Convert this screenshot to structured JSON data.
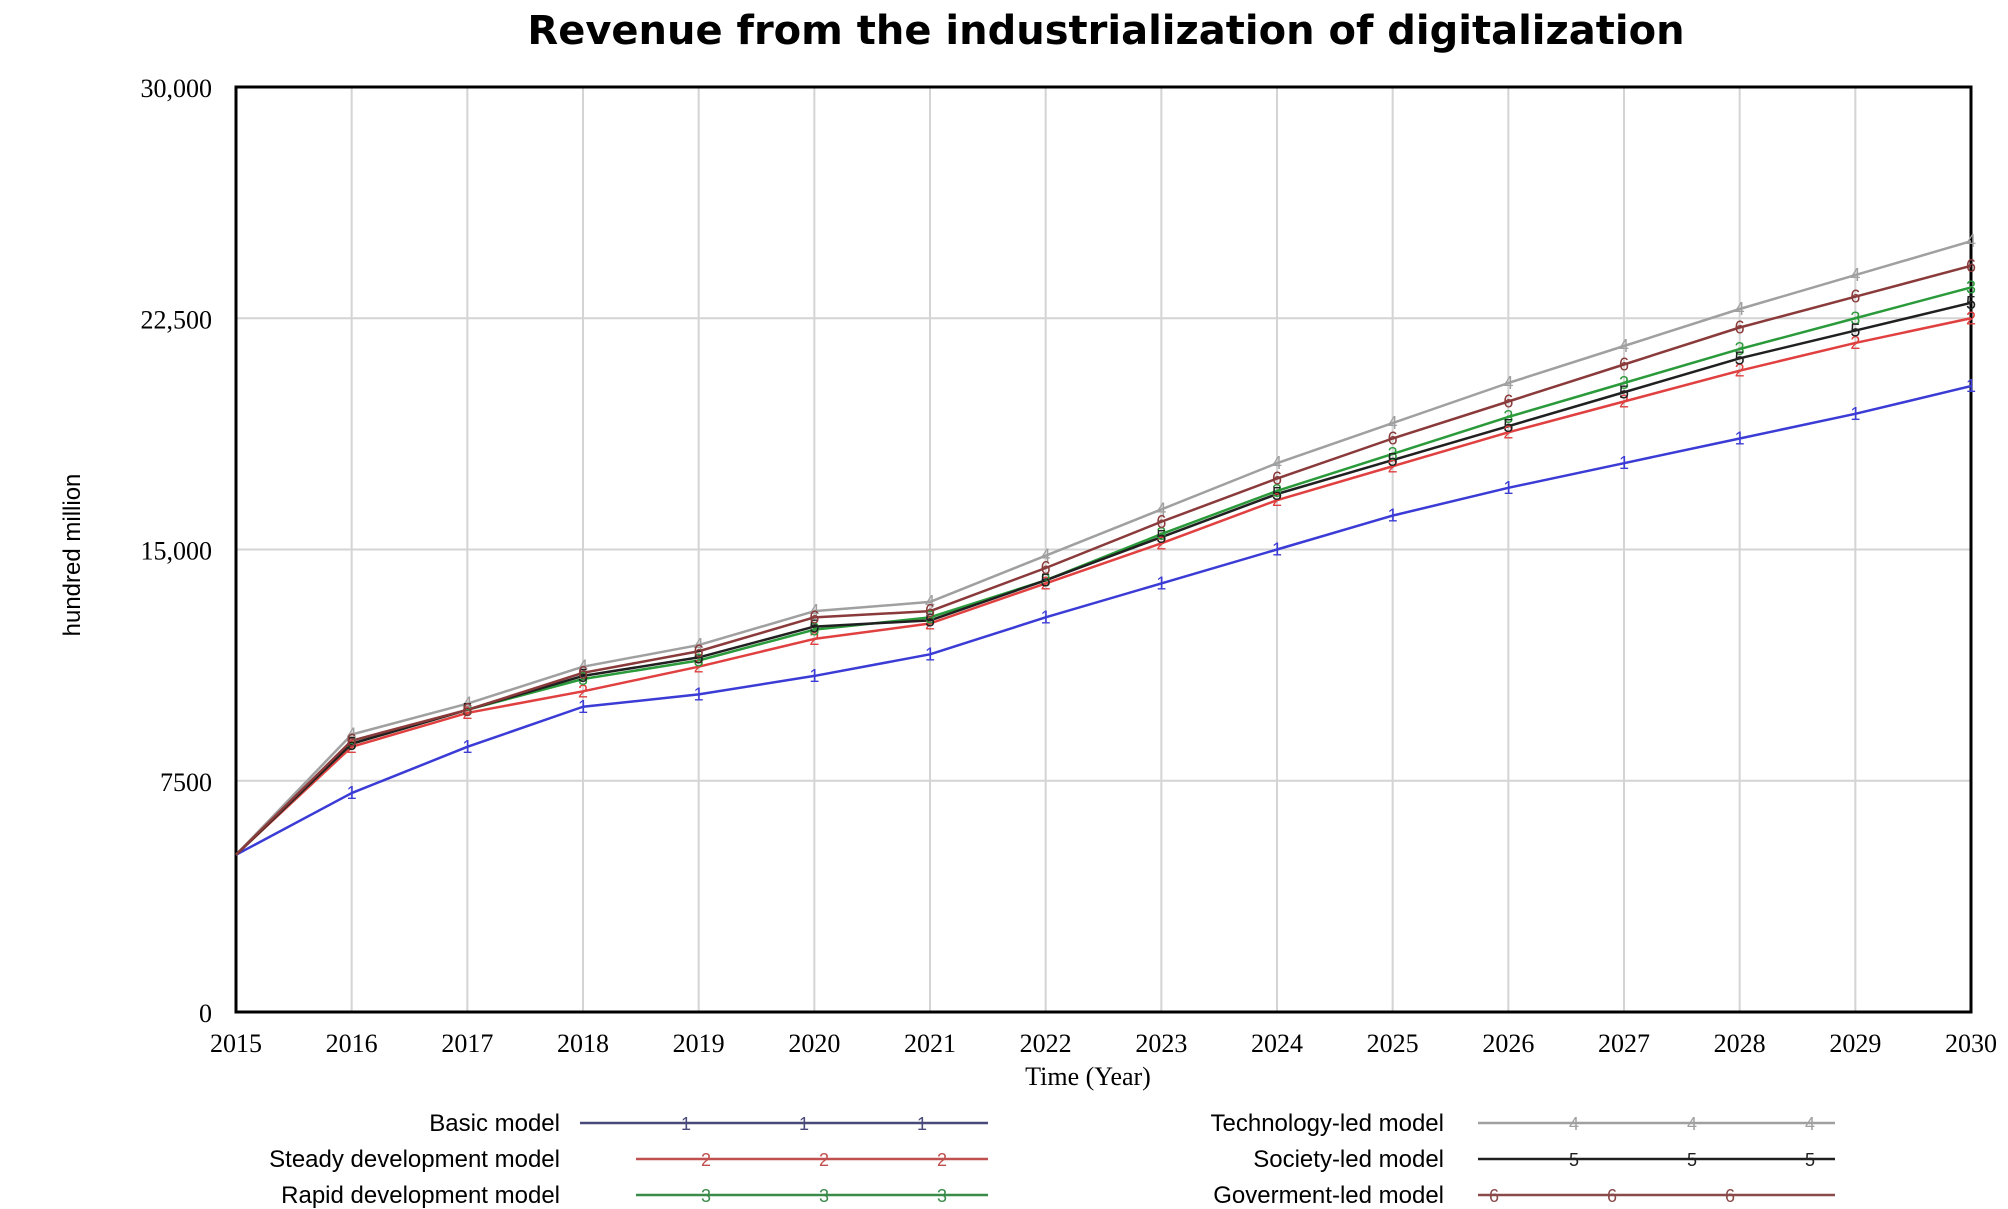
{
  "chart_data": {
    "type": "line",
    "title": "Revenue from the industrialization of digitalization",
    "xlabel": "Time (Year)",
    "ylabel": "hundred million",
    "xlim": [
      2015,
      2030
    ],
    "ylim": [
      0,
      30000
    ],
    "x": [
      2015,
      2016,
      2017,
      2018,
      2019,
      2020,
      2021,
      2022,
      2023,
      2024,
      2025,
      2026,
      2027,
      2028,
      2029,
      2030
    ],
    "xticks": [
      "2015",
      "2016",
      "2017",
      "2018",
      "2019",
      "2020",
      "2021",
      "2022",
      "2023",
      "2024",
      "2025",
      "2026",
      "2027",
      "2028",
      "2029",
      "2030"
    ],
    "yticks": [
      {
        "value": 0,
        "label": "0"
      },
      {
        "value": 7500,
        "label": "7500"
      },
      {
        "value": 15000,
        "label": "15,000"
      },
      {
        "value": 22500,
        "label": "22,500"
      },
      {
        "value": 30000,
        "label": "30,000"
      }
    ],
    "grid": true,
    "series": [
      {
        "name": "Basic model",
        "marker": "1",
        "color": "#3b3bd6",
        "legend_color": "#4a4a7a",
        "values": [
          5100,
          7100,
          8600,
          9900,
          10300,
          10900,
          11600,
          12800,
          13900,
          15000,
          16100,
          17000,
          17800,
          18600,
          19400,
          20300
        ]
      },
      {
        "name": "Steady development model",
        "marker": "2",
        "color": "#e04040",
        "legend_color": "#c05050",
        "values": [
          5100,
          8600,
          9700,
          10400,
          11200,
          12100,
          12600,
          13900,
          15200,
          16600,
          17700,
          18800,
          19800,
          20800,
          21700,
          22500
        ]
      },
      {
        "name": "Rapid development model",
        "marker": "3",
        "color": "#2a9a3a",
        "legend_color": "#3a8a4a",
        "values": [
          5100,
          8700,
          9800,
          10800,
          11400,
          12400,
          12800,
          14000,
          15500,
          16900,
          18100,
          19300,
          20400,
          21500,
          22500,
          23500
        ]
      },
      {
        "name": "Technology-led model",
        "marker": "4",
        "color": "#a0a0a0",
        "legend_color": "#a0a0a0",
        "values": [
          5100,
          9000,
          10000,
          11200,
          11900,
          13000,
          13300,
          14800,
          16300,
          17800,
          19100,
          20400,
          21600,
          22800,
          23900,
          25000
        ]
      },
      {
        "name": "Society-led model",
        "marker": "5",
        "color": "#202020",
        "legend_color": "#202020",
        "values": [
          5100,
          8700,
          9800,
          10900,
          11500,
          12500,
          12700,
          14000,
          15400,
          16800,
          17900,
          19000,
          20100,
          21200,
          22100,
          23000
        ]
      },
      {
        "name": "Goverment-led model",
        "marker": "6",
        "color": "#8a3a3a",
        "legend_color": "#8a4a4a",
        "values": [
          5100,
          8800,
          9800,
          11000,
          11700,
          12800,
          13000,
          14400,
          15900,
          17300,
          18600,
          19800,
          21000,
          22200,
          23200,
          24200
        ]
      }
    ]
  }
}
